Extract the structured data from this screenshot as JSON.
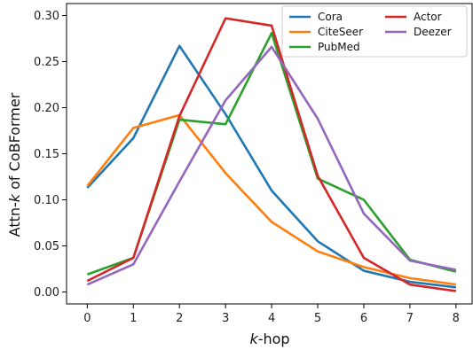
{
  "chart_data": {
    "type": "line",
    "xlabel": {
      "italic": "k",
      "rest": "-hop"
    },
    "ylabel": {
      "prefix": "Attn-",
      "italic": "k",
      "suffix": " of CoBFormer"
    },
    "x": [
      0,
      1,
      2,
      3,
      4,
      5,
      6,
      7,
      8
    ],
    "xlim": [
      -0.45,
      8.35
    ],
    "ylim": [
      -0.013,
      0.313
    ],
    "xticks": [
      0,
      1,
      2,
      3,
      4,
      5,
      6,
      7,
      8
    ],
    "yticks": [
      0.0,
      0.05,
      0.1,
      0.15,
      0.2,
      0.25,
      0.3
    ],
    "ytick_labels": [
      "0.00",
      "0.05",
      "0.10",
      "0.15",
      "0.20",
      "0.25",
      "0.30"
    ],
    "grid": false,
    "legend_position": "upper-right",
    "series": [
      {
        "name": "Cora",
        "color": "#1f77b4",
        "values": [
          0.113,
          0.167,
          0.267,
          0.193,
          0.11,
          0.055,
          0.023,
          0.011,
          0.005
        ]
      },
      {
        "name": "CiteSeer",
        "color": "#ff7f0e",
        "values": [
          0.115,
          0.178,
          0.192,
          0.129,
          0.076,
          0.044,
          0.027,
          0.015,
          0.008
        ]
      },
      {
        "name": "PubMed",
        "color": "#2ca02c",
        "values": [
          0.019,
          0.037,
          0.187,
          0.182,
          0.281,
          0.123,
          0.1,
          0.035,
          0.022
        ]
      },
      {
        "name": "Actor",
        "color": "#d62728",
        "values": [
          0.012,
          0.037,
          0.191,
          0.297,
          0.289,
          0.126,
          0.037,
          0.008,
          0.001
        ]
      },
      {
        "name": "Deezer",
        "color": "#9467bd",
        "values": [
          0.008,
          0.03,
          0.12,
          0.208,
          0.266,
          0.188,
          0.085,
          0.034,
          0.024
        ]
      }
    ]
  }
}
